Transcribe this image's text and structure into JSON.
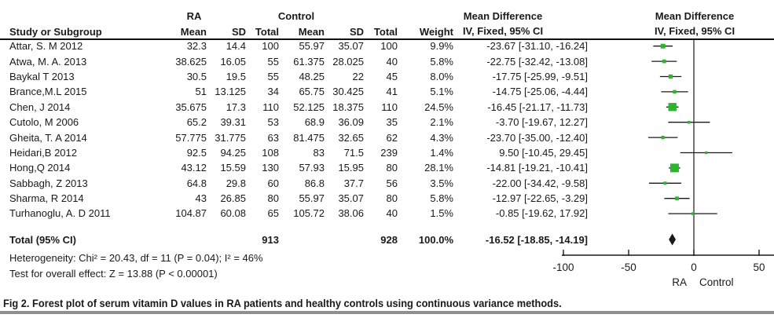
{
  "colors": {
    "marker_green": "#2db52d",
    "line_black": "#1a1a1a",
    "caption_rule_gray": "#8f8f8f"
  },
  "header": {
    "group_ra": "RA",
    "group_control": "Control",
    "cols": {
      "study": "Study or Subgroup",
      "mean": "Mean",
      "sd": "SD",
      "total": "Total",
      "weight": "Weight"
    },
    "effect_line1": "Mean Difference",
    "effect_line2": "IV, Fixed, 95% CI"
  },
  "caption": {
    "text": "Fig 2.  Forest plot of serum vitamin D values in RA patients and healthy controls using continuous variance methods."
  },
  "chart_data": {
    "type": "forest",
    "effect_measure": "Mean Difference",
    "method": "IV, Fixed, 95% CI",
    "studies": [
      {
        "name": "Attar, S. M 2012",
        "ra": {
          "mean": "32.3",
          "sd": "14.4",
          "total": "100"
        },
        "control": {
          "mean": "55.97",
          "sd": "35.07",
          "total": "100"
        },
        "weight": "9.9%",
        "weight_pct": 9.9,
        "ci_text": "-23.67 [-31.10, -16.24]",
        "md": -23.67,
        "lo": -31.1,
        "hi": -16.24
      },
      {
        "name": "Atwa, M. A. 2013",
        "ra": {
          "mean": "38.625",
          "sd": "16.05",
          "total": "55"
        },
        "control": {
          "mean": "61.375",
          "sd": "28.025",
          "total": "40"
        },
        "weight": "5.8%",
        "weight_pct": 5.8,
        "ci_text": "-22.75 [-32.42, -13.08]",
        "md": -22.75,
        "lo": -32.42,
        "hi": -13.08
      },
      {
        "name": "Baykal T 2013",
        "ra": {
          "mean": "30.5",
          "sd": "19.5",
          "total": "55"
        },
        "control": {
          "mean": "48.25",
          "sd": "22",
          "total": "45"
        },
        "weight": "8.0%",
        "weight_pct": 8.0,
        "ci_text": "-17.75 [-25.99, -9.51]",
        "md": -17.75,
        "lo": -25.99,
        "hi": -9.51
      },
      {
        "name": "Brance,M.L 2015",
        "ra": {
          "mean": "51",
          "sd": "13.125",
          "total": "34"
        },
        "control": {
          "mean": "65.75",
          "sd": "30.425",
          "total": "41"
        },
        "weight": "5.1%",
        "weight_pct": 5.1,
        "ci_text": "-14.75 [-25.06, -4.44]",
        "md": -14.75,
        "lo": -25.06,
        "hi": -4.44
      },
      {
        "name": "Chen, J 2014",
        "ra": {
          "mean": "35.675",
          "sd": "17.3",
          "total": "110"
        },
        "control": {
          "mean": "52.125",
          "sd": "18.375",
          "total": "110"
        },
        "weight": "24.5%",
        "weight_pct": 24.5,
        "ci_text": "-16.45 [-21.17, -11.73]",
        "md": -16.45,
        "lo": -21.17,
        "hi": -11.73
      },
      {
        "name": "Cutolo, M 2006",
        "ra": {
          "mean": "65.2",
          "sd": "39.31",
          "total": "53"
        },
        "control": {
          "mean": "68.9",
          "sd": "36.09",
          "total": "35"
        },
        "weight": "2.1%",
        "weight_pct": 2.1,
        "ci_text": "-3.70 [-19.67, 12.27]",
        "md": -3.7,
        "lo": -19.67,
        "hi": 12.27
      },
      {
        "name": "Gheita, T. A 2014",
        "ra": {
          "mean": "57.775",
          "sd": "31.775",
          "total": "63"
        },
        "control": {
          "mean": "81.475",
          "sd": "32.65",
          "total": "62"
        },
        "weight": "4.3%",
        "weight_pct": 4.3,
        "ci_text": "-23.70 [-35.00, -12.40]",
        "md": -23.7,
        "lo": -35.0,
        "hi": -12.4
      },
      {
        "name": "Heidari,B 2012",
        "ra": {
          "mean": "92.5",
          "sd": "94.25",
          "total": "108"
        },
        "control": {
          "mean": "83",
          "sd": "71.5",
          "total": "239"
        },
        "weight": "1.4%",
        "weight_pct": 1.4,
        "ci_text": "9.50 [-10.45, 29.45]",
        "md": 9.5,
        "lo": -10.45,
        "hi": 29.45
      },
      {
        "name": "Hong,Q 2014",
        "ra": {
          "mean": "43.12",
          "sd": "15.59",
          "total": "130"
        },
        "control": {
          "mean": "57.93",
          "sd": "15.95",
          "total": "80"
        },
        "weight": "28.1%",
        "weight_pct": 28.1,
        "ci_text": "-14.81 [-19.21, -10.41]",
        "md": -14.81,
        "lo": -19.21,
        "hi": -10.41
      },
      {
        "name": "Sabbagh, Z 2013",
        "ra": {
          "mean": "64.8",
          "sd": "29.8",
          "total": "60"
        },
        "control": {
          "mean": "86.8",
          "sd": "37.7",
          "total": "56"
        },
        "weight": "3.5%",
        "weight_pct": 3.5,
        "ci_text": "-22.00 [-34.42, -9.58]",
        "md": -22.0,
        "lo": -34.42,
        "hi": -9.58
      },
      {
        "name": "Sharma, R 2014",
        "ra": {
          "mean": "43",
          "sd": "26.85",
          "total": "80"
        },
        "control": {
          "mean": "55.97",
          "sd": "35.07",
          "total": "80"
        },
        "weight": "5.8%",
        "weight_pct": 5.8,
        "ci_text": "-12.97 [-22.65, -3.29]",
        "md": -12.97,
        "lo": -22.65,
        "hi": -3.29
      },
      {
        "name": "Turhanoglu, A. D 2011",
        "ra": {
          "mean": "104.87",
          "sd": "60.08",
          "total": "65"
        },
        "control": {
          "mean": "105.72",
          "sd": "38.06",
          "total": "40"
        },
        "weight": "1.5%",
        "weight_pct": 1.5,
        "ci_text": "-0.85 [-19.62, 17.92]",
        "md": -0.85,
        "lo": -19.62,
        "hi": 17.92
      }
    ],
    "total": {
      "label": "Total (95% CI)",
      "ra_total": "913",
      "control_total": "928",
      "weight": "100.0%",
      "weight_pct": 100.0,
      "ci_text": "-16.52 [-18.85, -14.19]",
      "md": -16.52,
      "lo": -18.85,
      "hi": -14.19
    },
    "heterogeneity": "Heterogeneity: Chi² = 20.43, df = 11 (P = 0.04); I² = 46%",
    "overall_effect": "Test for overall effect: Z = 13.88 (P < 0.00001)",
    "axis": {
      "tick_labels": [
        "-100",
        "-50",
        "0",
        "50"
      ],
      "tick_values": [
        -100,
        -50,
        0,
        50
      ],
      "xlim": [
        -101,
        61
      ],
      "left_label": "RA",
      "right_label": "Control",
      "grid": false
    }
  }
}
